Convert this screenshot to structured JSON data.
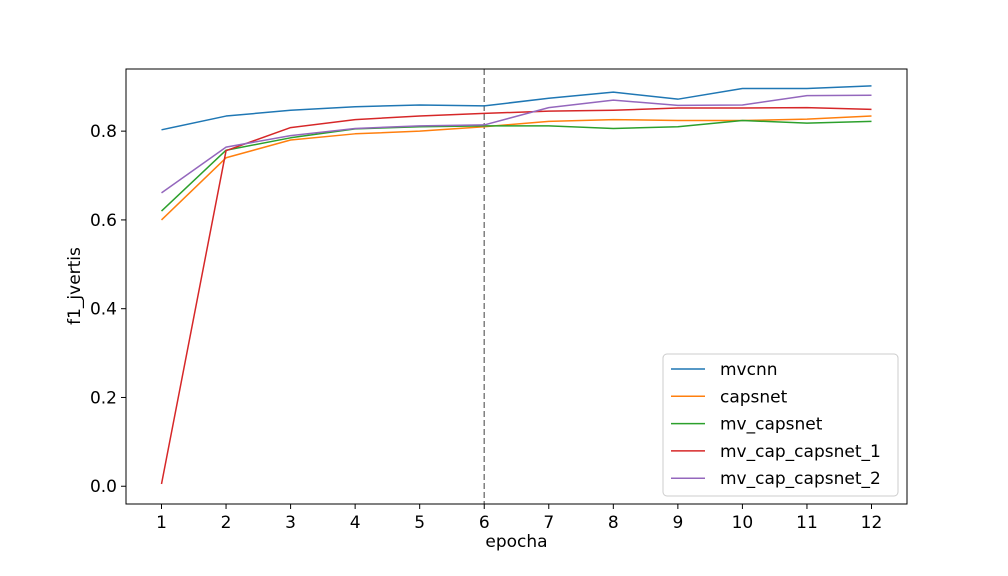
{
  "chart_data": {
    "type": "line",
    "title": "",
    "xlabel": "epocha",
    "ylabel": "f1_jvertis",
    "x": [
      1,
      2,
      3,
      4,
      5,
      6,
      7,
      8,
      9,
      10,
      11,
      12
    ],
    "xlim": [
      0.45,
      12.55
    ],
    "ylim": [
      -0.04,
      0.94
    ],
    "yticks": [
      0.0,
      0.2,
      0.4,
      0.6,
      0.8
    ],
    "ytick_labels": [
      "0.0",
      "0.2",
      "0.4",
      "0.6",
      "0.8"
    ],
    "xtick_labels": [
      "1",
      "2",
      "3",
      "4",
      "5",
      "6",
      "7",
      "8",
      "9",
      "10",
      "11",
      "12"
    ],
    "vertical_line": {
      "x": 6,
      "style": "dashed",
      "color": "#808080"
    },
    "legend_position": "lower right",
    "grid": false,
    "series": [
      {
        "name": "mvcnn",
        "color": "#1f77b4",
        "values": [
          0.803,
          0.834,
          0.847,
          0.855,
          0.859,
          0.857,
          0.874,
          0.888,
          0.872,
          0.896,
          0.896,
          0.902
        ]
      },
      {
        "name": "capsnet",
        "color": "#ff7f0e",
        "values": [
          0.6,
          0.74,
          0.78,
          0.794,
          0.8,
          0.81,
          0.822,
          0.826,
          0.824,
          0.824,
          0.827,
          0.834
        ]
      },
      {
        "name": "mv_capsnet",
        "color": "#2ca02c",
        "values": [
          0.62,
          0.757,
          0.785,
          0.805,
          0.81,
          0.812,
          0.812,
          0.806,
          0.81,
          0.824,
          0.818,
          0.822
        ]
      },
      {
        "name": "mv_cap_capsnet_1",
        "color": "#d62728",
        "values": [
          0.005,
          0.756,
          0.808,
          0.826,
          0.834,
          0.84,
          0.845,
          0.847,
          0.852,
          0.852,
          0.853,
          0.849
        ]
      },
      {
        "name": "mv_cap_capsnet_2",
        "color": "#9467bd",
        "values": [
          0.661,
          0.764,
          0.79,
          0.806,
          0.812,
          0.814,
          0.853,
          0.87,
          0.858,
          0.859,
          0.88,
          0.881
        ]
      }
    ]
  }
}
